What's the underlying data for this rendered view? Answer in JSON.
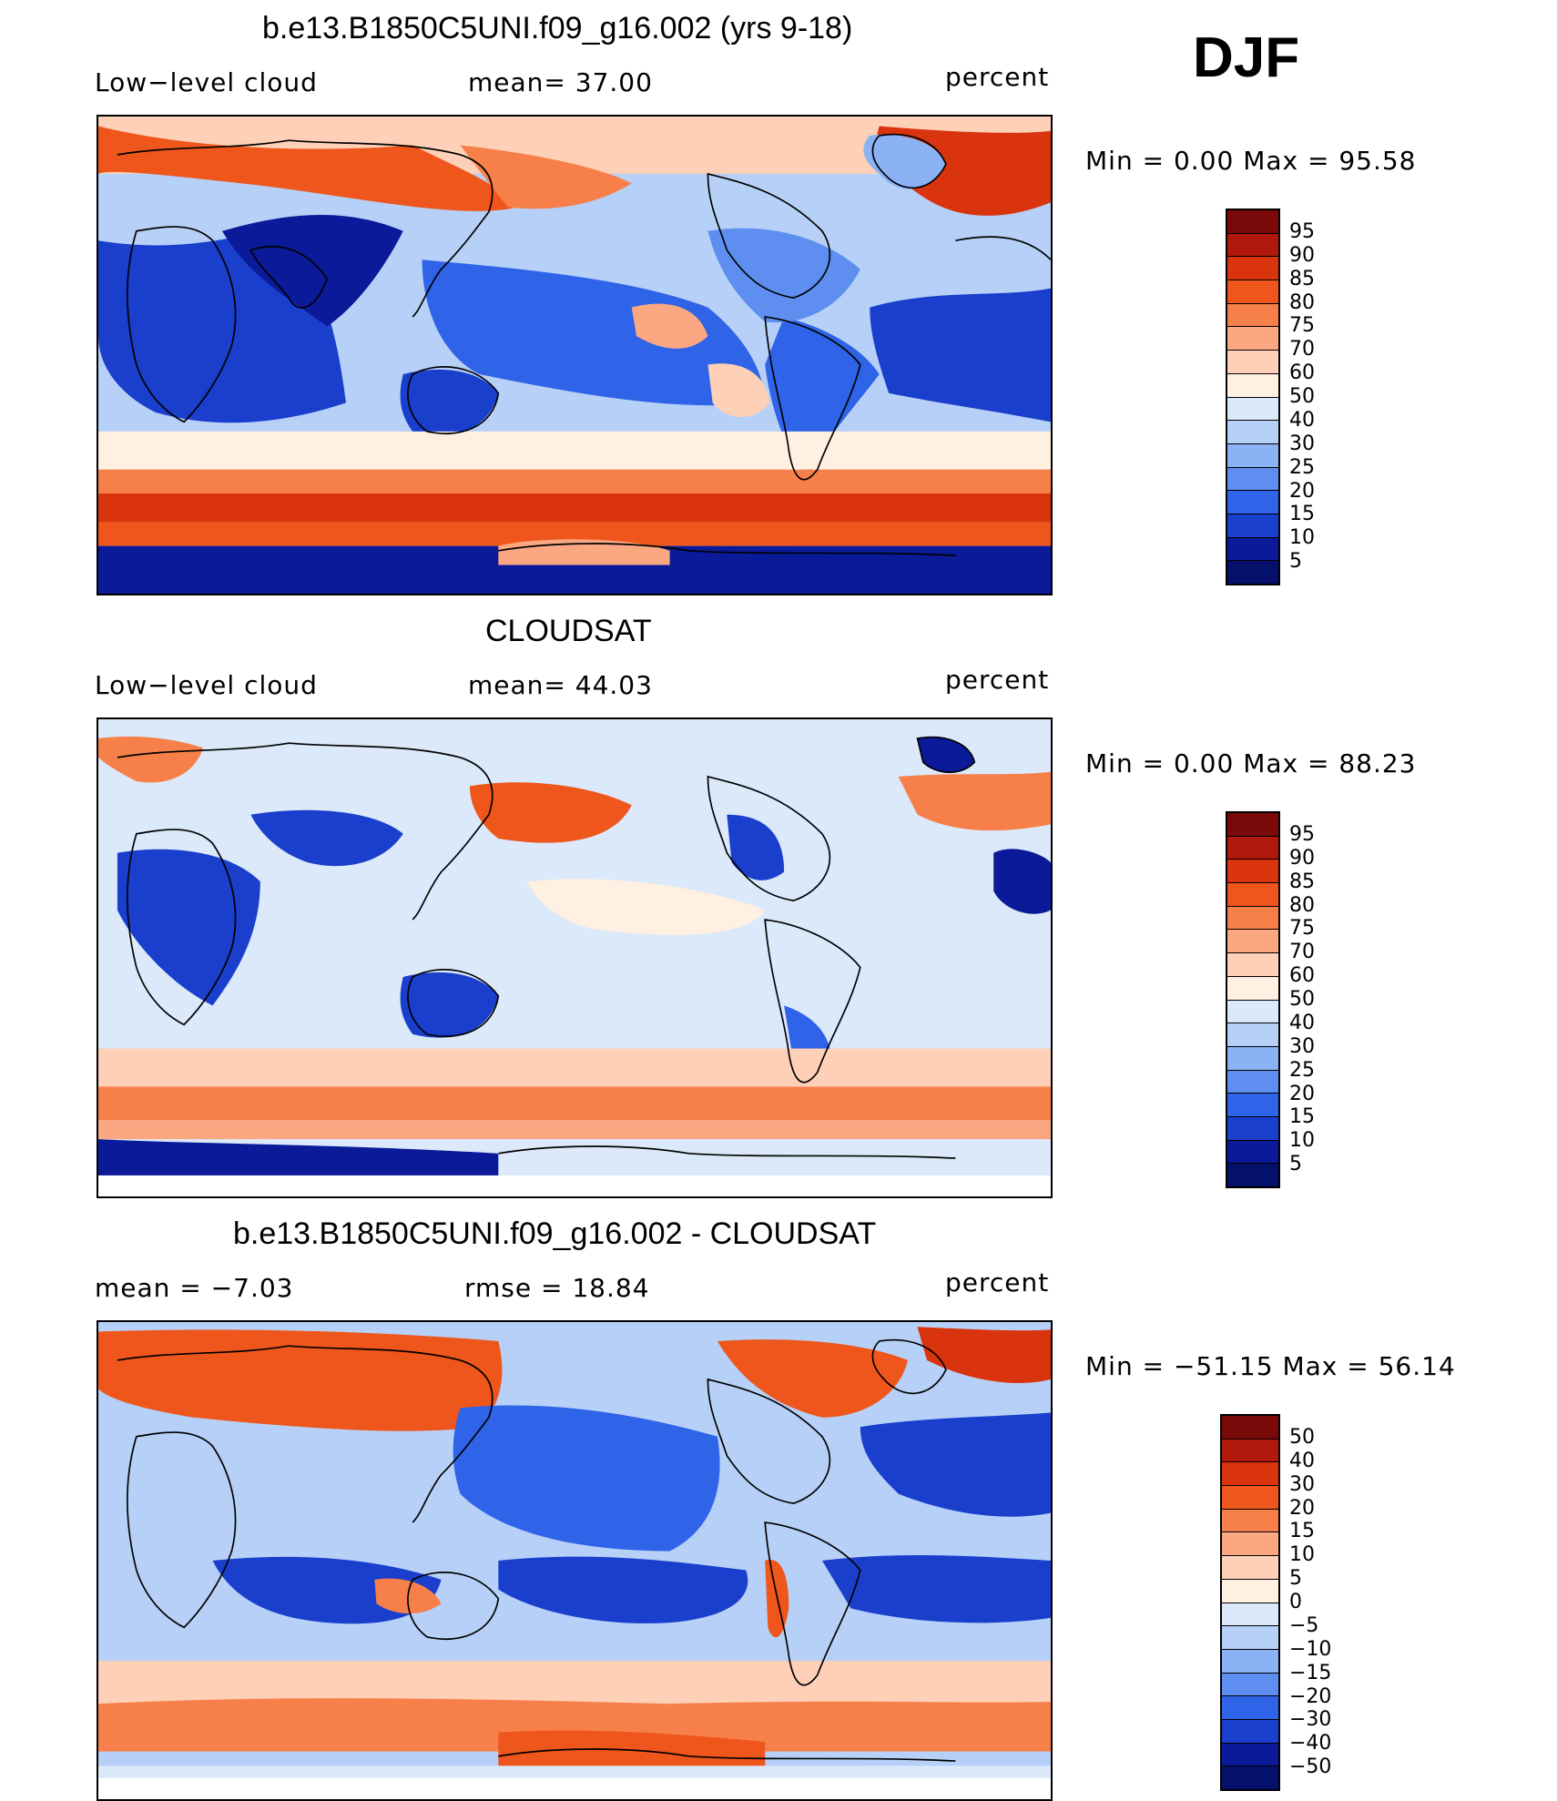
{
  "season": "DJF",
  "panels": [
    {
      "title": "b.e13.B1850C5UNI.f09_g16.002 (yrs 9-18)",
      "left_label": "Low−level cloud",
      "center_label": "mean=   37.00",
      "units": "percent",
      "minmax": "Min  =     0.00  Max  =    95.58",
      "colorbar": {
        "labels": [
          "95",
          "90",
          "85",
          "80",
          "75",
          "70",
          "60",
          "50",
          "40",
          "30",
          "25",
          "20",
          "15",
          "10",
          "5"
        ],
        "colors": [
          "#7a0a0a",
          "#b0190b",
          "#d9340e",
          "#ef561b",
          "#f7804a",
          "#fba882",
          "#fdd0b7",
          "#fff0e2",
          "#dbe9fa",
          "#b6d0f7",
          "#8bb2f5",
          "#5e8ff0",
          "#2f63e8",
          "#1a3fcd",
          "#0b1a99",
          "#05106b"
        ]
      },
      "map_style": "model"
    },
    {
      "title": "CLOUDSAT",
      "left_label": "Low−level cloud",
      "center_label": "mean=   44.03",
      "units": "percent",
      "minmax": "Min  =     0.00  Max  =    88.23",
      "colorbar": {
        "labels": [
          "95",
          "90",
          "85",
          "80",
          "75",
          "70",
          "60",
          "50",
          "40",
          "30",
          "25",
          "20",
          "15",
          "10",
          "5"
        ],
        "colors": [
          "#7a0a0a",
          "#b0190b",
          "#d9340e",
          "#ef561b",
          "#f7804a",
          "#fba882",
          "#fdd0b7",
          "#fff0e2",
          "#dbe9fa",
          "#b6d0f7",
          "#8bb2f5",
          "#5e8ff0",
          "#2f63e8",
          "#1a3fcd",
          "#0b1a99",
          "#05106b"
        ]
      },
      "map_style": "obs"
    },
    {
      "title": "b.e13.B1850C5UNI.f09_g16.002 - CLOUDSAT",
      "left_label": "mean  =    −7.03",
      "center_label": "rmse  =    18.84",
      "units": "percent",
      "minmax": "Min  =  −51.15  Max  =    56.14",
      "colorbar": {
        "labels": [
          "50",
          "40",
          "30",
          "20",
          "15",
          "10",
          "5",
          "0",
          "−5",
          "−10",
          "−15",
          "−20",
          "−30",
          "−40",
          "−50"
        ],
        "colors": [
          "#7a0a0a",
          "#b0190b",
          "#d9340e",
          "#ef561b",
          "#f7804a",
          "#fba882",
          "#fdd0b7",
          "#fff0e2",
          "#dbe9fa",
          "#b6d0f7",
          "#8bb2f5",
          "#5e8ff0",
          "#2f63e8",
          "#1a3fcd",
          "#0b1a99",
          "#05106b"
        ]
      },
      "map_style": "diff"
    }
  ]
}
